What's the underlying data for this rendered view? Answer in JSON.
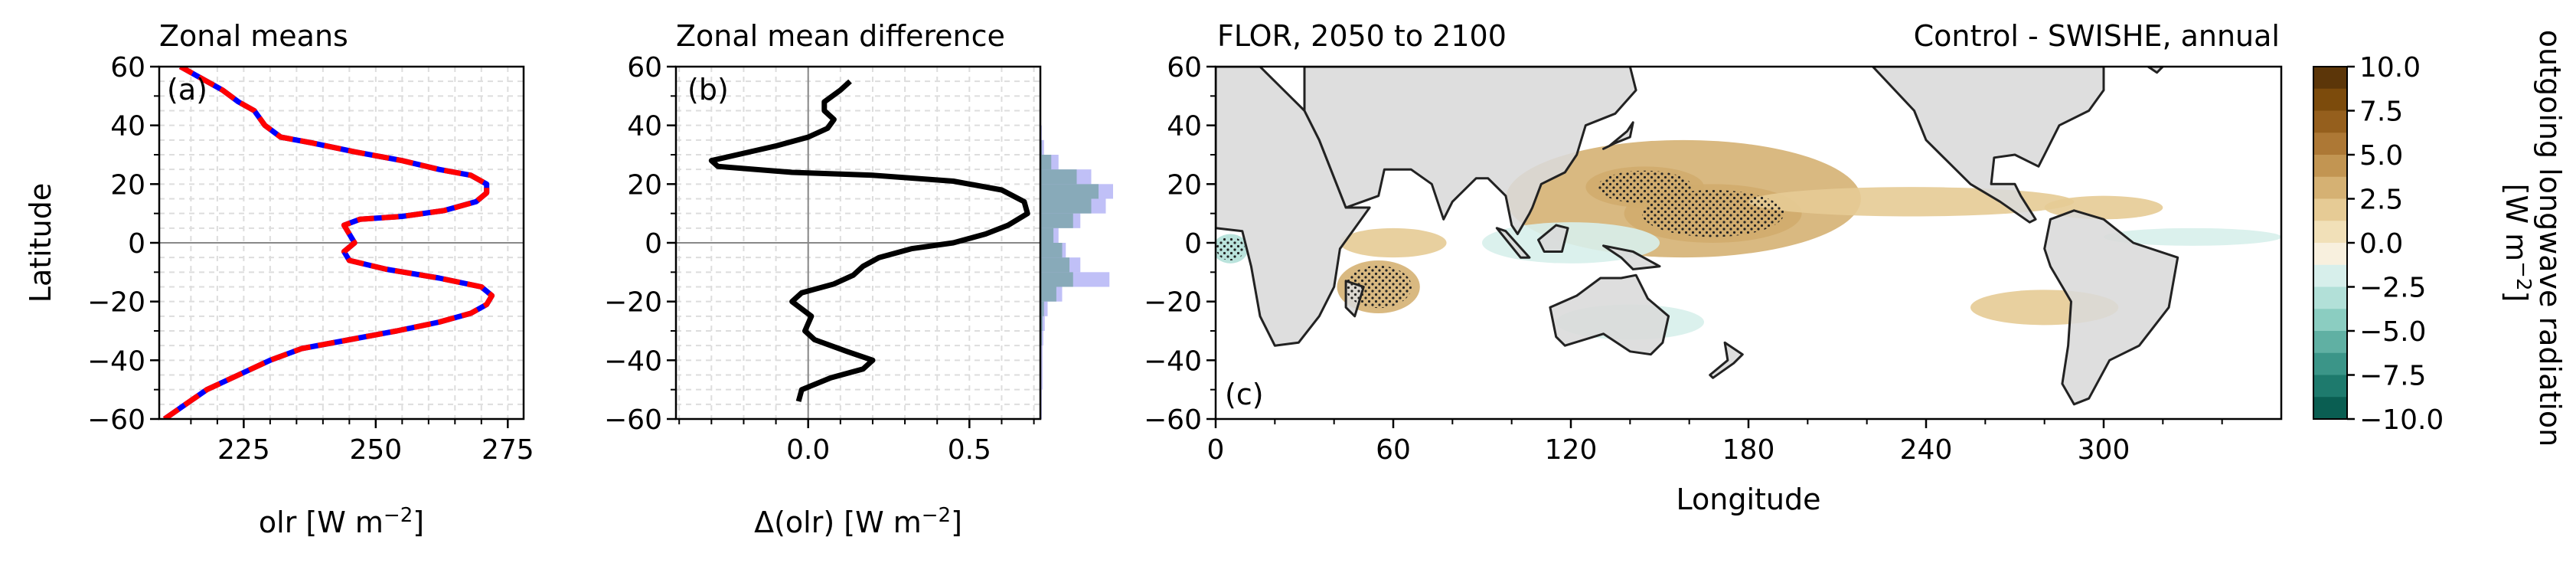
{
  "panel_a": {
    "title": "Zonal means",
    "panel_label": "(a)",
    "ylabel": "Latitude",
    "xlabel_main": "olr [W m",
    "xlabel_exp": "−2",
    "xlabel_tail": "]"
  },
  "panel_b": {
    "title": "Zonal mean difference",
    "panel_label": "(b)",
    "xlabel_main": "Δ(olr) [W m",
    "xlabel_exp": "−2",
    "xlabel_tail": "]"
  },
  "panel_c": {
    "title_left": "FLOR, 2050 to 2100",
    "title_right": "Control - SWISHE, annual",
    "panel_label": "(c)",
    "xlabel": "Longitude"
  },
  "colorbar": {
    "label_line1": "outgoing longwave radiation",
    "label_line2_main": "[W m",
    "label_line2_exp": "−2",
    "label_line2_tail": "]",
    "ticks": [
      "10.0",
      "7.5",
      "5.0",
      "2.5",
      "0.0",
      "−2.5",
      "−5.0",
      "−7.5",
      "−10.0"
    ],
    "levels": [
      10.0,
      8.75,
      7.5,
      6.25,
      5.0,
      3.75,
      2.5,
      1.25,
      0.0,
      -1.25,
      -2.5,
      -3.75,
      -5.0,
      -6.25,
      -7.5,
      -8.75,
      -10.0
    ],
    "colors": [
      "#5c3609",
      "#7c4b0c",
      "#955f1d",
      "#ad7835",
      "#c29552",
      "#d5b173",
      "#e6cb95",
      "#f1e0b8",
      "#f8f0de",
      "#d7efeb",
      "#b2e0d8",
      "#8bcdc1",
      "#60b0a3",
      "#3b9588",
      "#1e7a6d",
      "#0a5e52"
    ]
  },
  "chart_data": [
    {
      "type": "line",
      "title": "Zonal means",
      "xlabel": "olr [W m−2]",
      "ylabel": "Latitude",
      "xlim": [
        209,
        278
      ],
      "ylim": [
        -60,
        60
      ],
      "xticks": [
        225,
        250,
        275
      ],
      "yticks": [
        -60,
        -40,
        -20,
        0,
        20,
        40,
        60
      ],
      "grid": true,
      "series": [
        {
          "color": "#0000ff",
          "style": "solid",
          "x": [
            210,
            214,
            218,
            224,
            230,
            236,
            245,
            254,
            262,
            268,
            271,
            272,
            270,
            262,
            252,
            245,
            244,
            246,
            245,
            244,
            247,
            255,
            263,
            269,
            271,
            271,
            268,
            262,
            255,
            246,
            238,
            232,
            229,
            227,
            224,
            221,
            217,
            213
          ],
          "y": [
            -60,
            -55,
            -50,
            -45,
            -40,
            -36,
            -33,
            -30,
            -27,
            -24,
            -21,
            -18,
            -15,
            -12,
            -9,
            -6,
            -3,
            0,
            3,
            6,
            8,
            9,
            11,
            14,
            17,
            20,
            23,
            25,
            28,
            31,
            34,
            36,
            40,
            45,
            48,
            52,
            56,
            60
          ]
        },
        {
          "color": "#ff0000",
          "style": "dashed",
          "x": [
            210,
            214,
            218,
            224,
            230,
            236,
            245,
            254,
            262,
            268,
            271,
            272,
            270,
            262,
            252,
            245,
            244,
            246,
            245,
            244,
            247,
            255,
            263,
            269,
            271,
            271,
            268,
            262,
            255,
            246,
            238,
            232,
            229,
            227,
            224,
            221,
            217,
            213
          ],
          "y": [
            -60,
            -55,
            -50,
            -45,
            -40,
            -36,
            -33,
            -30,
            -27,
            -24,
            -21,
            -18,
            -15,
            -12,
            -9,
            -6,
            -3,
            0,
            3,
            6,
            8,
            9,
            11,
            14,
            17,
            20,
            23,
            25,
            28,
            31,
            34,
            36,
            40,
            45,
            48,
            52,
            56,
            60
          ]
        }
      ]
    },
    {
      "type": "line",
      "title": "Zonal mean difference",
      "xlabel": "Δ(olr) [W m−2]",
      "xlim": [
        -0.41,
        0.72
      ],
      "ylim": [
        -60,
        60
      ],
      "xticks": [
        0.0,
        0.5
      ],
      "xtick_labels": [
        "0.0",
        "0.5"
      ],
      "yticks": [
        -60,
        -40,
        -20,
        0,
        20,
        40,
        60
      ],
      "grid": true,
      "series": [
        {
          "color": "#000000",
          "x": [
            -0.03,
            -0.02,
            0.07,
            0.17,
            0.2,
            0.12,
            0.02,
            -0.01,
            0.01,
            -0.05,
            -0.02,
            0.08,
            0.14,
            0.17,
            0.22,
            0.32,
            0.45,
            0.55,
            0.62,
            0.68,
            0.67,
            0.6,
            0.45,
            0.2,
            -0.05,
            -0.28,
            -0.3,
            -0.22,
            -0.1,
            0.0,
            0.06,
            0.08,
            0.05,
            0.05,
            0.1,
            0.13
          ],
          "y": [
            -54,
            -50,
            -46,
            -43,
            -40,
            -37,
            -33,
            -30,
            -25,
            -20,
            -17,
            -14,
            -11,
            -8,
            -5,
            -2,
            0,
            3,
            6,
            10,
            14,
            18,
            21,
            23,
            24,
            26,
            28,
            30,
            33,
            36,
            39,
            42,
            45,
            48,
            52,
            55
          ]
        }
      ],
      "histogram": {
        "orientation": "horizontal",
        "bins": [
          {
            "y0": -60,
            "y1": -55,
            "blue": 0.02,
            "gray": 0.01
          },
          {
            "y0": -55,
            "y1": -50,
            "blue": 0.02,
            "gray": 0.01
          },
          {
            "y0": -50,
            "y1": -45,
            "blue": 0.03,
            "gray": 0.01
          },
          {
            "y0": -45,
            "y1": -40,
            "blue": 0.03,
            "gray": 0.01
          },
          {
            "y0": -40,
            "y1": -35,
            "blue": 0.03,
            "gray": 0.01
          },
          {
            "y0": -35,
            "y1": -30,
            "blue": 0.04,
            "gray": 0.02
          },
          {
            "y0": -30,
            "y1": -25,
            "blue": 0.06,
            "gray": 0.03
          },
          {
            "y0": -25,
            "y1": -20,
            "blue": 0.1,
            "gray": 0.05
          },
          {
            "y0": -20,
            "y1": -15,
            "blue": 0.3,
            "gray": 0.22
          },
          {
            "y0": -15,
            "y1": -10,
            "blue": 0.95,
            "gray": 0.45
          },
          {
            "y0": -10,
            "y1": -5,
            "blue": 0.55,
            "gray": 0.4
          },
          {
            "y0": -5,
            "y1": 0,
            "blue": 0.35,
            "gray": 0.3
          },
          {
            "y0": 0,
            "y1": 5,
            "blue": 0.25,
            "gray": 0.18
          },
          {
            "y0": 5,
            "y1": 10,
            "blue": 0.55,
            "gray": 0.45
          },
          {
            "y0": 10,
            "y1": 15,
            "blue": 0.9,
            "gray": 0.7
          },
          {
            "y0": 15,
            "y1": 20,
            "blue": 1.0,
            "gray": 0.8
          },
          {
            "y0": 20,
            "y1": 25,
            "blue": 0.7,
            "gray": 0.5
          },
          {
            "y0": 25,
            "y1": 30,
            "blue": 0.25,
            "gray": 0.15
          },
          {
            "y0": 30,
            "y1": 35,
            "blue": 0.05,
            "gray": 0.02
          },
          {
            "y0": 35,
            "y1": 40,
            "blue": 0.02,
            "gray": 0.01
          }
        ]
      }
    },
    {
      "type": "heatmap",
      "title": "FLOR, 2050 to 2100",
      "title_right": "Control - SWISHE, annual",
      "xlabel": "Longitude",
      "xlim": [
        0,
        360
      ],
      "ylim": [
        -60,
        60
      ],
      "xticks": [
        0,
        60,
        120,
        180,
        240,
        300
      ],
      "yticks": [
        -60,
        -40,
        -20,
        0,
        20,
        40,
        60
      ],
      "colorbar_label": "outgoing longwave radiation [W m−2]",
      "colorbar_range": [
        -10,
        10
      ],
      "anomaly_regions": [
        {
          "lon": 168,
          "lat": 10,
          "rlon": 30,
          "rlat": 10,
          "value": 5.5,
          "stipple": true
        },
        {
          "lon": 145,
          "lat": 19,
          "rlon": 20,
          "rlat": 7,
          "value": 6.0,
          "stipple": true
        },
        {
          "lon": 158,
          "lat": 15,
          "rlon": 60,
          "rlat": 20,
          "value": 2.5,
          "stipple": false
        },
        {
          "lon": 235,
          "lat": 14,
          "rlon": 55,
          "rlat": 5,
          "value": 1.5,
          "stipple": false
        },
        {
          "lon": 300,
          "lat": 12,
          "rlon": 20,
          "rlat": 4,
          "value": 1.5,
          "stipple": false
        },
        {
          "lon": 55,
          "lat": -15,
          "rlon": 14,
          "rlat": 9,
          "value": 3.0,
          "stipple": true
        },
        {
          "lon": 60,
          "lat": 0,
          "rlon": 18,
          "rlat": 5,
          "value": 2.0,
          "stipple": false
        },
        {
          "lon": 280,
          "lat": -22,
          "rlon": 25,
          "rlat": 6,
          "value": 2.0,
          "stipple": false
        },
        {
          "lon": 120,
          "lat": 0,
          "rlon": 30,
          "rlat": 7,
          "value": -2.5,
          "stipple": false
        },
        {
          "lon": 140,
          "lat": -27,
          "rlon": 25,
          "rlat": 6,
          "value": -2.0,
          "stipple": false
        },
        {
          "lon": 5,
          "lat": -2,
          "rlon": 6,
          "rlat": 5,
          "value": -3.0,
          "stipple": true
        },
        {
          "lon": 330,
          "lat": 2,
          "rlon": 30,
          "rlat": 3,
          "value": -1.5,
          "stipple": false
        }
      ]
    }
  ]
}
